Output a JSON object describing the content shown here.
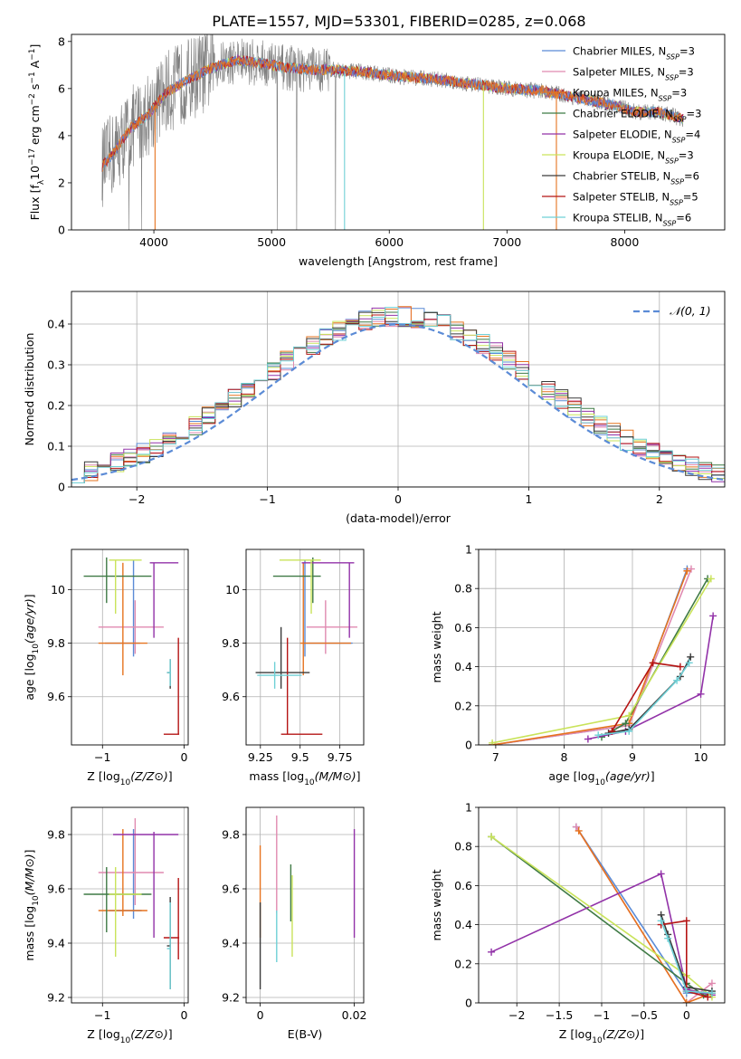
{
  "figure": {
    "title": "PLATE=1557, MJD=53301, FIBERID=0285, z=0.068"
  },
  "colors": {
    "Chabrier MILES": "#5b8bd6",
    "Salpeter MILES": "#e08ab0",
    "Kroupa MILES": "#e6731f",
    "Chabrier ELODIE": "#3f7a45",
    "Salpeter ELODIE": "#9232a8",
    "Kroupa ELODIE": "#c9e35a",
    "Chabrier STELIB": "#3a3a3a",
    "Salpeter STELIB": "#b51414",
    "Kroupa STELIB": "#6fd0d6",
    "data": "#808080"
  },
  "chart_data": [
    {
      "panel": "spectrum",
      "type": "line",
      "xlabel": "wavelength [Angstrom, rest frame]",
      "ylabel": "Flux [f_λ10^-17 erg cm^-2 s^-1 A^-1]",
      "xlim": [
        3300,
        8850
      ],
      "ylim": [
        0,
        8.3
      ],
      "xticks": [
        4000,
        5000,
        6000,
        7000,
        8000
      ],
      "yticks": [
        0,
        2,
        4,
        6,
        8
      ],
      "legend_position": "top-right",
      "legend": [
        "Chabrier MILES, N_SSP=3",
        "Salpeter MILES, N_SSP=3",
        "Kroupa MILES, N_SSP=3",
        "Chabrier ELODIE, N_SSP=3",
        "Salpeter ELODIE, N_SSP=4",
        "Kroupa ELODIE, N_SSP=3",
        "Chabrier STELIB, N_SSP=6",
        "Salpeter STELIB, N_SSP=5",
        "Kroupa STELIB, N_SSP=6"
      ],
      "continuum": {
        "x": [
          3560,
          3650,
          3800,
          3950,
          4100,
          4300,
          4500,
          4700,
          4900,
          5100,
          5300,
          5500,
          5800,
          6100,
          6400,
          6700,
          7000,
          7300,
          7600,
          7900,
          8100,
          8300,
          8500
        ],
        "y": [
          2.7,
          3.2,
          4.3,
          4.9,
          5.8,
          6.4,
          6.9,
          7.2,
          7.1,
          6.9,
          6.8,
          6.8,
          6.7,
          6.5,
          6.4,
          6.2,
          6.0,
          5.9,
          5.6,
          5.3,
          5.0,
          5.0,
          4.7
        ]
      },
      "model_series": [
        "Kroupa STELIB",
        "Kroupa ELODIE",
        "Salpeter ELODIE",
        "Salpeter STELIB",
        "Chabrier MILES",
        "Kroupa MILES"
      ]
    },
    {
      "panel": "residual_histogram",
      "type": "histogram",
      "xlabel": "(data-model)/error",
      "ylabel": "Normed distribution",
      "xlim": [
        -2.5,
        2.5
      ],
      "ylim": [
        0,
        0.48
      ],
      "xticks": [
        -2,
        -1,
        0,
        1,
        2
      ],
      "yticks": [
        0.0,
        0.1,
        0.2,
        0.3,
        0.4
      ],
      "reference_label": "N(0,1)",
      "reference_color": "#5b8bd6",
      "legend_position": "top-right",
      "bins": 50
    },
    {
      "panel": "age_vs_Z",
      "type": "errorbar",
      "xlabel": "Z [log10(Z/Z⊙)]",
      "ylabel": "age  [log10(age/yr)]",
      "xlim": [
        -1.38,
        0.05
      ],
      "ylim": [
        9.42,
        10.15
      ],
      "xticks": [
        -1,
        0
      ],
      "yticks": [
        9.6,
        9.8,
        10.0
      ],
      "points": [
        {
          "model": "Chabrier MILES",
          "x": -0.62,
          "y": 9.8,
          "xerr": [
            0.35,
            0.08
          ],
          "yerr": [
            0.05,
            0.31
          ]
        },
        {
          "model": "Salpeter MILES",
          "x": -0.6,
          "y": 9.86,
          "xerr": [
            0.45,
            0.35
          ],
          "yerr": [
            0.1,
            0.1
          ]
        },
        {
          "model": "Kroupa MILES",
          "x": -0.75,
          "y": 9.8,
          "xerr": [
            0.3,
            0.3
          ],
          "yerr": [
            0.12,
            0.3
          ]
        },
        {
          "model": "Chabrier ELODIE",
          "x": -0.95,
          "y": 10.05,
          "xerr": [
            0.28,
            0.55
          ],
          "yerr": [
            0.1,
            0.07
          ]
        },
        {
          "model": "Salpeter ELODIE",
          "x": -0.37,
          "y": 10.1,
          "xerr": [
            0.05,
            0.3
          ],
          "yerr": [
            0.28,
            0.0
          ]
        },
        {
          "model": "Kroupa ELODIE",
          "x": -0.84,
          "y": 10.11,
          "xerr": [
            0.08,
            0.32
          ],
          "yerr": [
            0.2,
            0.0
          ]
        },
        {
          "model": "Chabrier STELIB",
          "x": -0.17,
          "y": 9.69,
          "xerr": [
            0.04,
            0.0
          ],
          "yerr": [
            0.06,
            0.05
          ]
        },
        {
          "model": "Salpeter STELIB",
          "x": -0.07,
          "y": 9.46,
          "xerr": [
            0.18,
            0.01
          ],
          "yerr": [
            0.0,
            0.36
          ]
        },
        {
          "model": "Kroupa STELIB",
          "x": -0.17,
          "y": 9.69,
          "xerr": [
            0.04,
            0.01
          ],
          "yerr": [
            0.05,
            0.05
          ]
        }
      ]
    },
    {
      "panel": "age_vs_mass",
      "type": "errorbar",
      "xlabel": "mass [log10(M/M⊙)]",
      "ylabel": "",
      "xlim": [
        9.16,
        9.9
      ],
      "ylim": [
        9.42,
        10.15
      ],
      "xticks": [
        9.25,
        9.5,
        9.75
      ],
      "yticks": [
        9.6,
        9.8,
        10.0
      ],
      "points": [
        {
          "model": "Chabrier MILES",
          "x": 9.53,
          "y": 9.8,
          "xerr": [
            0.01,
            0.3
          ],
          "yerr": [
            0.05,
            0.31
          ]
        },
        {
          "model": "Salpeter MILES",
          "x": 9.66,
          "y": 9.86,
          "xerr": [
            0.12,
            0.2
          ],
          "yerr": [
            0.1,
            0.1
          ]
        },
        {
          "model": "Kroupa MILES",
          "x": 9.52,
          "y": 9.8,
          "xerr": [
            0.02,
            0.3
          ],
          "yerr": [
            0.12,
            0.3
          ]
        },
        {
          "model": "Chabrier ELODIE",
          "x": 9.58,
          "y": 10.05,
          "xerr": [
            0.25,
            0.05
          ],
          "yerr": [
            0.1,
            0.07
          ]
        },
        {
          "model": "Salpeter ELODIE",
          "x": 9.81,
          "y": 10.1,
          "xerr": [
            0.3,
            0.03
          ],
          "yerr": [
            0.28,
            0.0
          ]
        },
        {
          "model": "Kroupa ELODIE",
          "x": 9.57,
          "y": 10.11,
          "xerr": [
            0.2,
            0.06
          ],
          "yerr": [
            0.2,
            0.0
          ]
        },
        {
          "model": "Chabrier STELIB",
          "x": 9.38,
          "y": 9.69,
          "xerr": [
            0.16,
            0.18
          ],
          "yerr": [
            0.06,
            0.17
          ]
        },
        {
          "model": "Salpeter STELIB",
          "x": 9.42,
          "y": 9.46,
          "xerr": [
            0.04,
            0.22
          ],
          "yerr": [
            0.0,
            0.36
          ]
        },
        {
          "model": "Kroupa STELIB",
          "x": 9.34,
          "y": 9.68,
          "xerr": [
            0.11,
            0.17
          ],
          "yerr": [
            0.05,
            0.05
          ]
        }
      ]
    },
    {
      "panel": "weight_vs_age",
      "type": "line",
      "xlabel": "age  [log10(age/yr)]",
      "ylabel": "mass weight",
      "xlim": [
        6.75,
        10.35
      ],
      "ylim": [
        0,
        1.0
      ],
      "xticks": [
        7,
        8,
        9,
        10
      ],
      "yticks": [
        0.0,
        0.2,
        0.4,
        0.6,
        0.8,
        1.0
      ],
      "series": [
        {
          "name": "Chabrier MILES",
          "x": [
            6.95,
            8.95,
            9.8
          ],
          "y": [
            0.0,
            0.1,
            0.9
          ]
        },
        {
          "name": "Salpeter MILES",
          "x": [
            6.95,
            8.95,
            9.86
          ],
          "y": [
            0.0,
            0.1,
            0.9
          ]
        },
        {
          "name": "Kroupa MILES",
          "x": [
            6.95,
            8.95,
            9.8
          ],
          "y": [
            0.0,
            0.11,
            0.89
          ]
        },
        {
          "name": "Chabrier ELODIE",
          "x": [
            8.55,
            8.9,
            10.1
          ],
          "y": [
            0.04,
            0.11,
            0.85
          ]
        },
        {
          "name": "Salpeter ELODIE",
          "x": [
            8.35,
            8.9,
            10.0,
            10.18
          ],
          "y": [
            0.03,
            0.07,
            0.26,
            0.66
          ]
        },
        {
          "name": "Kroupa ELODIE",
          "x": [
            6.95,
            8.95,
            10.15
          ],
          "y": [
            0.01,
            0.15,
            0.85
          ]
        },
        {
          "name": "Chabrier STELIB",
          "x": [
            8.65,
            8.95,
            9.7,
            9.85
          ],
          "y": [
            0.06,
            0.08,
            0.35,
            0.45
          ]
        },
        {
          "name": "Salpeter STELIB",
          "x": [
            8.7,
            9.3,
            9.7
          ],
          "y": [
            0.07,
            0.42,
            0.4
          ]
        },
        {
          "name": "Kroupa STELIB",
          "x": [
            8.5,
            8.95,
            9.65,
            9.83
          ],
          "y": [
            0.05,
            0.07,
            0.33,
            0.42
          ]
        }
      ]
    },
    {
      "panel": "mass_vs_Z",
      "type": "errorbar",
      "xlabel": "Z [log10(Z/Z⊙)]",
      "ylabel": "mass [log10(M/M⊙)]",
      "xlim": [
        -1.38,
        0.05
      ],
      "ylim": [
        9.18,
        9.9
      ],
      "xticks": [
        -1,
        0
      ],
      "yticks": [
        9.2,
        9.4,
        9.6,
        9.8
      ],
      "points": [
        {
          "model": "Chabrier MILES",
          "x": -0.62,
          "y": 9.52,
          "xerr": [
            0.3,
            0.1
          ],
          "yerr": [
            0.03,
            0.3
          ]
        },
        {
          "model": "Salpeter MILES",
          "x": -0.6,
          "y": 9.66,
          "xerr": [
            0.45,
            0.35
          ],
          "yerr": [
            0.12,
            0.2
          ]
        },
        {
          "model": "Kroupa MILES",
          "x": -0.75,
          "y": 9.52,
          "xerr": [
            0.3,
            0.3
          ],
          "yerr": [
            0.02,
            0.3
          ]
        },
        {
          "model": "Chabrier ELODIE",
          "x": -0.95,
          "y": 9.58,
          "xerr": [
            0.28,
            0.55
          ],
          "yerr": [
            0.14,
            0.1
          ]
        },
        {
          "model": "Salpeter ELODIE",
          "x": -0.37,
          "y": 9.8,
          "xerr": [
            0.5,
            0.3
          ],
          "yerr": [
            0.38,
            0.01
          ]
        },
        {
          "model": "Kroupa ELODIE",
          "x": -0.84,
          "y": 9.58,
          "xerr": [
            0.08,
            0.32
          ],
          "yerr": [
            0.23,
            0.1
          ]
        },
        {
          "model": "Chabrier STELIB",
          "x": -0.17,
          "y": 9.39,
          "xerr": [
            0.04,
            0.0
          ],
          "yerr": [
            0.16,
            0.18
          ]
        },
        {
          "model": "Salpeter STELIB",
          "x": -0.07,
          "y": 9.42,
          "xerr": [
            0.18,
            0.01
          ],
          "yerr": [
            0.08,
            0.22
          ]
        },
        {
          "model": "Kroupa STELIB",
          "x": -0.17,
          "y": 9.38,
          "xerr": [
            0.04,
            0.01
          ],
          "yerr": [
            0.15,
            0.17
          ]
        }
      ]
    },
    {
      "panel": "mass_vs_ebv",
      "type": "errorbar",
      "xlabel": "E(B-V)",
      "ylabel": "",
      "xlim": [
        -0.003,
        0.022
      ],
      "ylim": [
        9.18,
        9.9
      ],
      "xticks": [
        0.0,
        0.02
      ],
      "yticks": [
        9.2,
        9.4,
        9.6,
        9.8
      ],
      "points": [
        {
          "model": "Kroupa MILES",
          "x": 0.0,
          "y": 9.52,
          "yerr": [
            0.1,
            0.24
          ]
        },
        {
          "model": "Chabrier STELIB",
          "x": 0.0,
          "y": 9.39,
          "yerr": [
            0.16,
            0.16
          ]
        },
        {
          "model": "Salpeter MILES",
          "x": 0.0035,
          "y": 9.66,
          "yerr": [
            0.15,
            0.21
          ]
        },
        {
          "model": "Kroupa STELIB",
          "x": 0.0035,
          "y": 9.38,
          "yerr": [
            0.05,
            0.14
          ]
        },
        {
          "model": "Chabrier ELODIE",
          "x": 0.0065,
          "y": 9.58,
          "yerr": [
            0.1,
            0.11
          ]
        },
        {
          "model": "Kroupa ELODIE",
          "x": 0.0068,
          "y": 9.5,
          "yerr": [
            0.15,
            0.15
          ]
        },
        {
          "model": "Salpeter ELODIE",
          "x": 0.02,
          "y": 9.62,
          "yerr": [
            0.2,
            0.2
          ]
        }
      ]
    },
    {
      "panel": "weight_vs_Z",
      "type": "line",
      "xlabel": "Z [log10(Z/Z⊙)]",
      "ylabel": "mass weight",
      "xlim": [
        -2.45,
        0.45
      ],
      "ylim": [
        0,
        1.0
      ],
      "xticks": [
        -2.0,
        -1.5,
        -1.0,
        -0.5,
        0.0
      ],
      "yticks": [
        0.0,
        0.2,
        0.4,
        0.6,
        0.8,
        1.0
      ],
      "series": [
        {
          "name": "Chabrier MILES",
          "x": [
            -1.3,
            0.0,
            0.3
          ],
          "y": [
            0.9,
            0.05,
            0.05
          ]
        },
        {
          "name": "Salpeter MILES",
          "x": [
            -1.3,
            0.0,
            0.3
          ],
          "y": [
            0.9,
            0.0,
            0.1
          ]
        },
        {
          "name": "Kroupa MILES",
          "x": [
            -1.27,
            0.0,
            0.3
          ],
          "y": [
            0.88,
            0.0,
            0.05
          ]
        },
        {
          "name": "Chabrier ELODIE",
          "x": [
            -2.3,
            0.0,
            0.2
          ],
          "y": [
            0.85,
            0.1,
            0.04
          ]
        },
        {
          "name": "Salpeter ELODIE",
          "x": [
            -2.3,
            -0.3,
            0.0,
            0.3
          ],
          "y": [
            0.26,
            0.66,
            0.07,
            0.04
          ]
        },
        {
          "name": "Kroupa ELODIE",
          "x": [
            -2.3,
            0.0,
            0.3
          ],
          "y": [
            0.85,
            0.14,
            0.03
          ]
        },
        {
          "name": "Chabrier STELIB",
          "x": [
            -0.3,
            -0.22,
            0.0,
            0.3
          ],
          "y": [
            0.45,
            0.35,
            0.08,
            0.06
          ]
        },
        {
          "name": "Salpeter STELIB",
          "x": [
            -0.3,
            0.0,
            0.0,
            0.25
          ],
          "y": [
            0.4,
            0.42,
            0.06,
            0.03
          ]
        },
        {
          "name": "Kroupa STELIB",
          "x": [
            -0.3,
            -0.22,
            0.0,
            0.3
          ],
          "y": [
            0.42,
            0.33,
            0.06,
            0.05
          ]
        }
      ]
    }
  ]
}
